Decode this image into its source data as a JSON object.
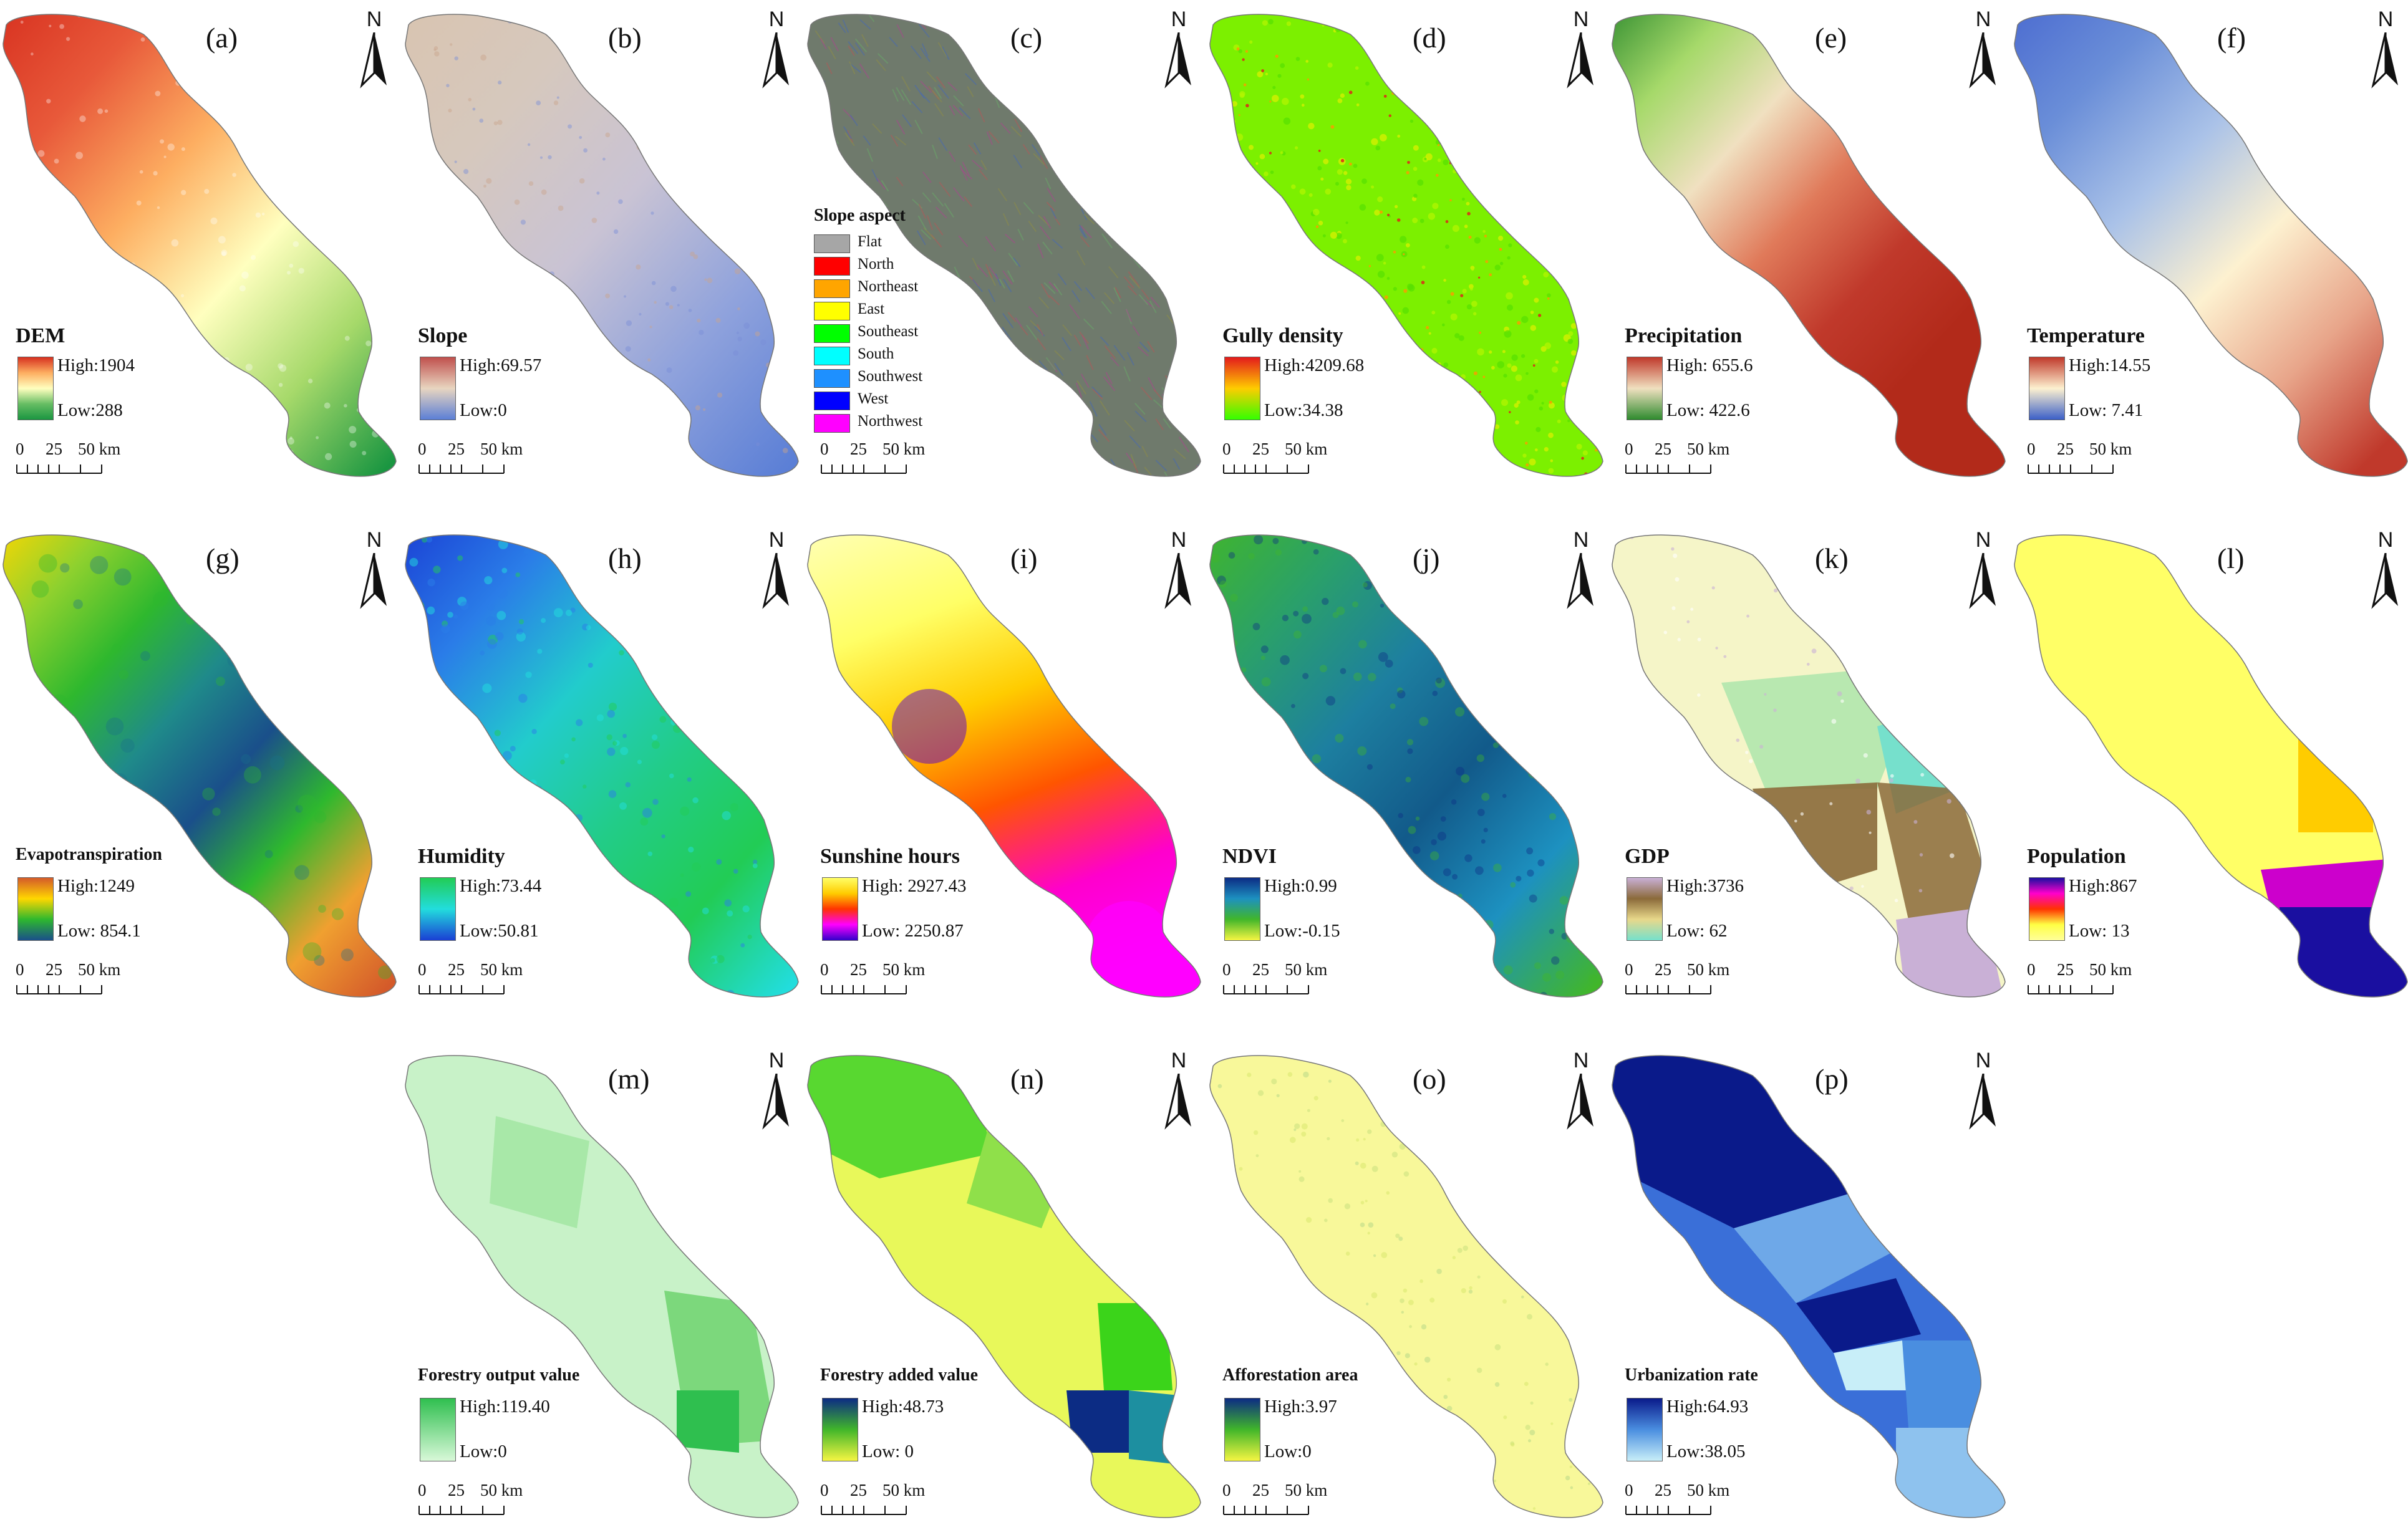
{
  "figure": {
    "north_letter": "N",
    "scale_labels": [
      "0",
      "25",
      "50 km"
    ],
    "panels": [
      {
        "id": "a",
        "label": "(a)",
        "title": "DEM",
        "legend_type": "bar",
        "high": "High:1904",
        "low": "Low:288",
        "colors": [
          "#d7301f",
          "#fdae61",
          "#ffffbf",
          "#66bd63",
          "#1a9641"
        ],
        "map_style": "dem"
      },
      {
        "id": "b",
        "label": "(b)",
        "title": "Slope",
        "legend_type": "bar",
        "high": "High:69.57",
        "low": "Low:0",
        "colors": [
          "#c0504d",
          "#e8d5c0",
          "#5b7fd6"
        ],
        "map_style": "slope"
      },
      {
        "id": "c",
        "label": "(c)",
        "title": "Slope aspect",
        "legend_type": "classes",
        "classes": [
          {
            "name": "Flat",
            "color": "#a6a6a6"
          },
          {
            "name": "North",
            "color": "#ff0000"
          },
          {
            "name": "Northeast",
            "color": "#ffa500"
          },
          {
            "name": "East",
            "color": "#ffff00"
          },
          {
            "name": "Southeast",
            "color": "#00ff00"
          },
          {
            "name": "South",
            "color": "#00ffff"
          },
          {
            "name": "Southwest",
            "color": "#1e90ff"
          },
          {
            "name": "West",
            "color": "#0000ff"
          },
          {
            "name": "Northwest",
            "color": "#ff00ff"
          }
        ],
        "map_style": "aspect"
      },
      {
        "id": "d",
        "label": "(d)",
        "title": "Gully density",
        "legend_type": "bar",
        "high": "High:4209.68",
        "low": "Low:34.38",
        "colors": [
          "#e31a1c",
          "#ffcc00",
          "#33ff00"
        ],
        "map_style": "gully"
      },
      {
        "id": "e",
        "label": "(e)",
        "title": "Precipitation",
        "legend_type": "bar",
        "high": "High: 655.6",
        "low": "Low: 422.6",
        "colors": [
          "#c0392b",
          "#f0e0c0",
          "#2e8b2e"
        ],
        "map_style": "precip"
      },
      {
        "id": "f",
        "label": "(f)",
        "title": "Temperature",
        "legend_type": "bar",
        "high": "High:14.55",
        "low": "Low: 7.41",
        "colors": [
          "#c0392b",
          "#fdf1d0",
          "#3b5fc8"
        ],
        "map_style": "temp"
      },
      {
        "id": "g",
        "label": "(g)",
        "title": "Evapotranspiration",
        "legend_type": "bar",
        "high": "High:1249",
        "low": "Low: 854.1",
        "colors": [
          "#d45a2a",
          "#ffd700",
          "#2eb82e",
          "#1a4f8a"
        ],
        "map_style": "evap"
      },
      {
        "id": "h",
        "label": "(h)",
        "title": "Humidity",
        "legend_type": "bar",
        "high": "High:73.44",
        "low": "Low:50.81",
        "colors": [
          "#22cc55",
          "#22dddd",
          "#1a3fd4"
        ],
        "map_style": "humid"
      },
      {
        "id": "i",
        "label": "(i)",
        "title": "Sunshine hours",
        "legend_type": "bar",
        "high": "High: 2927.43",
        "low": "Low: 2250.87",
        "colors": [
          "#ffff66",
          "#ffcc00",
          "#ff3300",
          "#ff00ff",
          "#3300cc"
        ],
        "map_style": "sun"
      },
      {
        "id": "j",
        "label": "(j)",
        "title": "NDVI",
        "legend_type": "bar",
        "high": "High:0.99",
        "low": "Low:-0.15",
        "colors": [
          "#0c2c84",
          "#1d91c0",
          "#41b62a",
          "#f5f542"
        ],
        "map_style": "ndvi"
      },
      {
        "id": "k",
        "label": "(k)",
        "title": "GDP",
        "legend_type": "bar",
        "high": "High:3736",
        "low": "Low: 62",
        "colors": [
          "#c9b0d6",
          "#8b6a3a",
          "#e8d88a",
          "#76e0cc"
        ],
        "map_style": "gdp"
      },
      {
        "id": "l",
        "label": "(l)",
        "title": "Population",
        "legend_type": "bar",
        "high": "High:867",
        "low": "Low: 13",
        "colors": [
          "#1a0fa0",
          "#ff00cc",
          "#ff3300",
          "#ffff44",
          "#ffff99"
        ],
        "map_style": "pop"
      },
      {
        "id": "m",
        "label": "(m)",
        "title": "Forestry output value",
        "legend_type": "bar",
        "high": "High:119.40",
        "low": "Low:0",
        "colors": [
          "#2fbf4f",
          "#d8f8d8"
        ],
        "map_style": "forout"
      },
      {
        "id": "n",
        "label": "(n)",
        "title": "Forestry added value",
        "legend_type": "bar",
        "high": "High:48.73",
        "low": "Low: 0",
        "colors": [
          "#0c2c84",
          "#41b62a",
          "#f5f542"
        ],
        "map_style": "foradd"
      },
      {
        "id": "o",
        "label": "(o)",
        "title": "Afforestation area",
        "legend_type": "bar",
        "high": "High:3.97",
        "low": "Low:0",
        "colors": [
          "#0c2c84",
          "#41b62a",
          "#f5f542"
        ],
        "map_style": "affor"
      },
      {
        "id": "p",
        "label": "(p)",
        "title": "Urbanization rate",
        "legend_type": "bar",
        "high": "High:64.93",
        "low": "Low:38.05",
        "colors": [
          "#0a1a8a",
          "#4a8ee0",
          "#c8eef8"
        ],
        "map_style": "urban"
      }
    ]
  }
}
